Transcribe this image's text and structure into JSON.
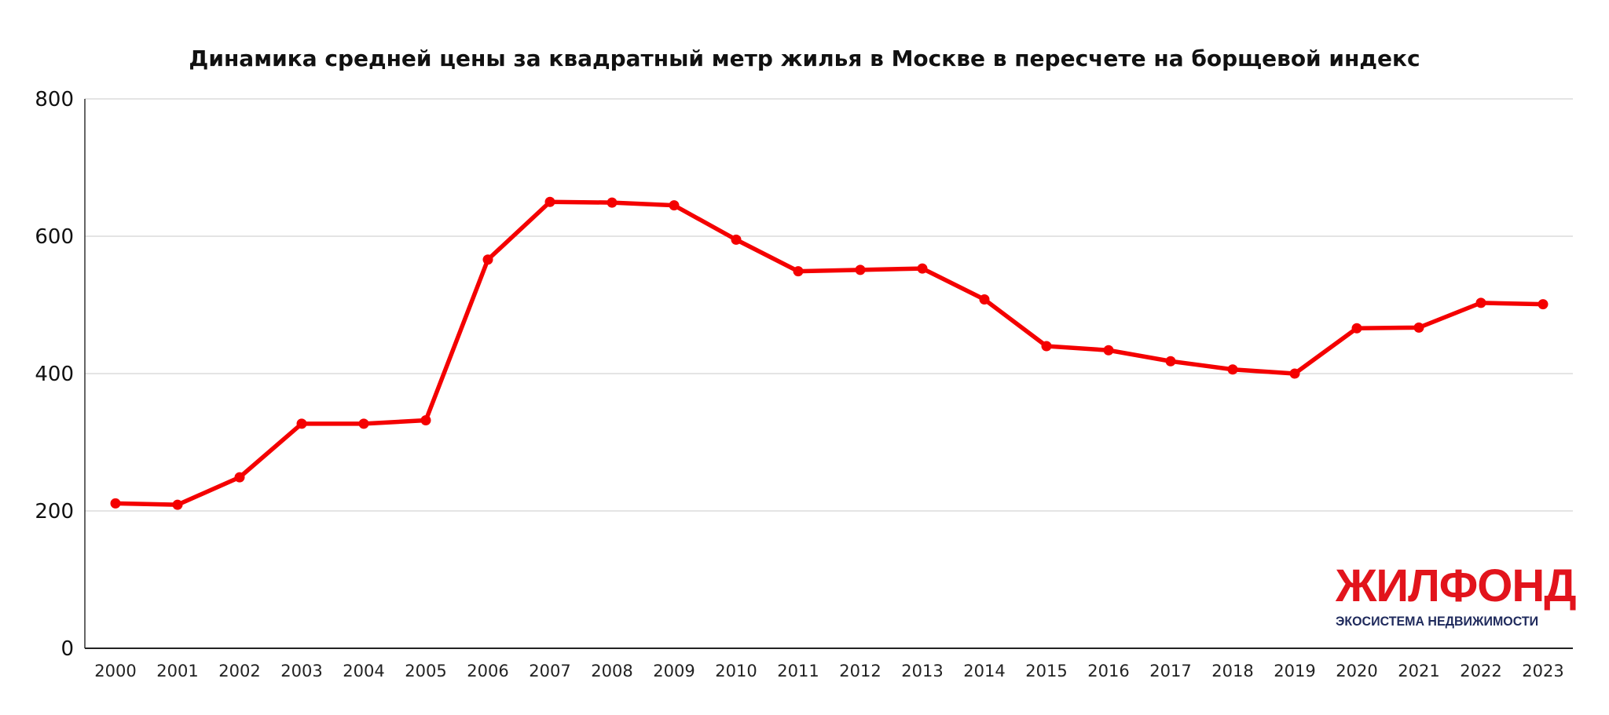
{
  "chart_data": {
    "type": "line",
    "title": "Динамика средней цены за квадратный метр жилья в Москве в пересчете на борщевой индекс",
    "xlabel": "",
    "ylabel": "",
    "categories": [
      "2000",
      "2001",
      "2002",
      "2003",
      "2004",
      "2005",
      "2006",
      "2007",
      "2008",
      "2009",
      "2010",
      "2011",
      "2012",
      "2013",
      "2014",
      "2015",
      "2016",
      "2017",
      "2018",
      "2019",
      "2020",
      "2021",
      "2022",
      "2023"
    ],
    "series": [
      {
        "values": [
          211,
          209,
          249,
          327,
          327,
          332,
          566,
          650,
          649,
          645,
          595,
          549,
          551,
          553,
          508,
          440,
          434,
          418,
          406,
          400,
          466,
          467,
          503,
          501
        ]
      }
    ],
    "yticks": [
      "0",
      "200",
      "400",
      "600",
      "800"
    ],
    "ylim": [
      0,
      800
    ],
    "grid": true,
    "legend": "none",
    "line_color": "#f40000"
  },
  "logo": {
    "name": "ЖИЛФОНД",
    "tagline": "ЭКОСИСТЕМА НЕДВИЖИМОСТИ",
    "name_color": "#e2141c",
    "tagline_color": "#1f2a5c"
  }
}
